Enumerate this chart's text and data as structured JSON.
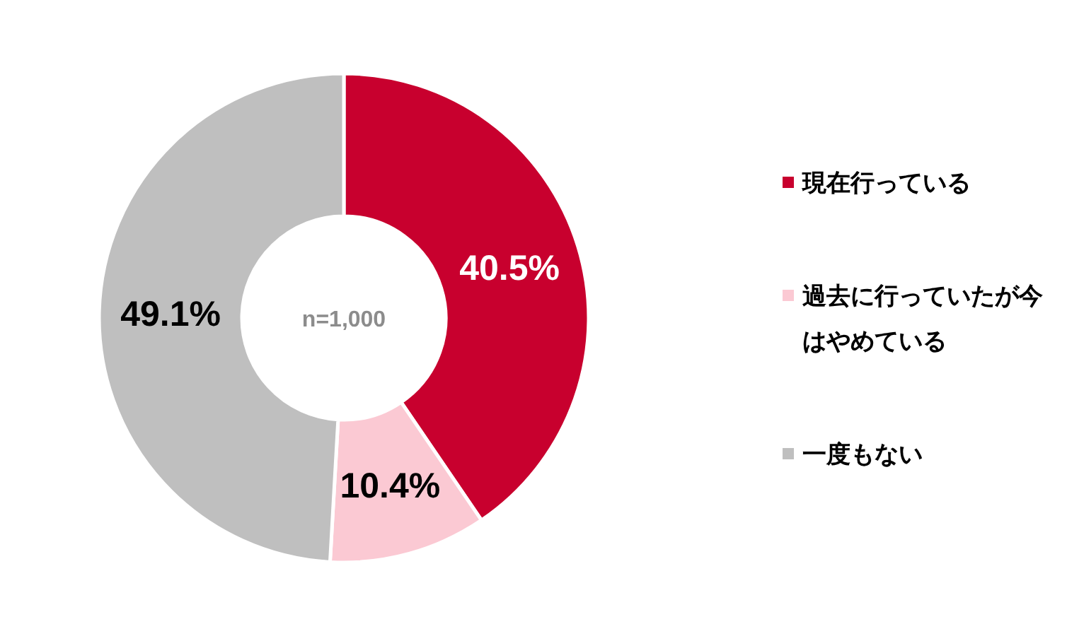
{
  "chart_data": {
    "type": "donut",
    "categories": [
      "現在行っている",
      "過去に行っていたが今はやめている",
      "一度もない"
    ],
    "values": [
      40.5,
      10.4,
      49.1
    ],
    "colors": [
      "#c8002e",
      "#fbc9d3",
      "#bfbfbf"
    ],
    "value_labels": [
      "40.5%",
      "10.4%",
      "49.1%"
    ],
    "annotations": [
      "n=1,000"
    ],
    "legend": "right"
  }
}
